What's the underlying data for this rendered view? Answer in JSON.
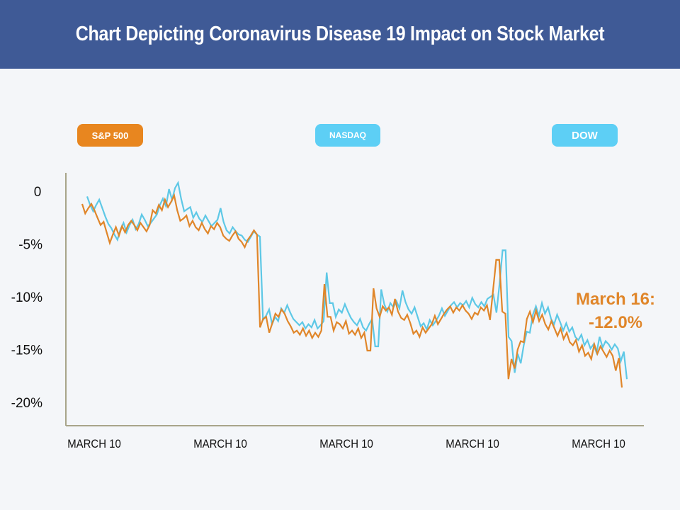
{
  "header": {
    "title": "Chart Depicting Coronavirus Disease 19 Impact on Stock Market"
  },
  "legend": [
    {
      "label": "S&P 500",
      "color": "#e8861f"
    },
    {
      "label": "NASDAQ",
      "color": "#5dcff5"
    },
    {
      "label": "DOW",
      "color": "#5dcff5"
    }
  ],
  "chart_data": {
    "type": "line",
    "title": "Chart Depicting Coronavirus Disease 19 Impact on Stock Market",
    "xlabel": "",
    "ylabel": "",
    "ylim": [
      -22,
      1.5
    ],
    "y_ticks": [
      0,
      -5,
      -10,
      -15,
      -20
    ],
    "y_tick_labels": [
      "0",
      "-5%",
      "-10%",
      "-15%",
      "-20%"
    ],
    "x_tick_labels": [
      "MARCH 10",
      "MARCH 10",
      "MARCH 10",
      "MARCH 10",
      "MARCH 10"
    ],
    "grid": false,
    "legend_position": "top",
    "annotation": {
      "line1": "March 16:",
      "line2": "-12.0%"
    },
    "series": [
      {
        "name": "S&P 500",
        "color": "#e0862a",
        "values": [
          -1.2,
          -2.1,
          -1.6,
          -1.2,
          -1.8,
          -2.5,
          -3.2,
          -2.9,
          -3.9,
          -4.9,
          -4.1,
          -3.4,
          -4.2,
          -3.3,
          -3.9,
          -3.2,
          -2.8,
          -3.2,
          -3.7,
          -3.0,
          -3.4,
          -3.8,
          -3.2,
          -1.8,
          -2.1,
          -1.3,
          -1.8,
          -0.8,
          -1.5,
          -1.0,
          -0.4,
          -1.8,
          -2.8,
          -2.6,
          -2.3,
          -3.3,
          -2.8,
          -3.4,
          -3.7,
          -3.0,
          -3.6,
          -4.0,
          -3.3,
          -3.6,
          -3.0,
          -3.4,
          -4.2,
          -4.5,
          -4.7,
          -4.2,
          -3.8,
          -4.5,
          -4.8,
          -5.3,
          -4.6,
          -4.2,
          -3.7,
          -4.1,
          -12.9,
          -12.1,
          -11.9,
          -13.4,
          -12.5,
          -11.6,
          -11.9,
          -11.2,
          -11.6,
          -12.3,
          -12.8,
          -13.4,
          -13.2,
          -13.6,
          -13.0,
          -13.7,
          -13.2,
          -13.9,
          -13.4,
          -13.8,
          -13.2,
          -8.8,
          -11.9,
          -11.9,
          -13.2,
          -12.4,
          -12.6,
          -13.0,
          -12.3,
          -13.5,
          -13.2,
          -13.6,
          -13.0,
          -13.9,
          -13.4,
          -15.1,
          -15.1,
          -9.2,
          -11.1,
          -11.9,
          -10.9,
          -11.3,
          -11.0,
          -11.7,
          -10.2,
          -11.4,
          -12.0,
          -12.2,
          -11.7,
          -12.5,
          -13.5,
          -13.2,
          -13.8,
          -12.9,
          -13.4,
          -13.0,
          -12.6,
          -11.8,
          -12.6,
          -12.1,
          -11.6,
          -11.2,
          -10.9,
          -11.5,
          -11.0,
          -11.3,
          -10.8,
          -11.3,
          -11.6,
          -12.1,
          -11.5,
          -11.7,
          -11.0,
          -11.3,
          -10.8,
          -12.2,
          -9.3,
          -6.5,
          -6.5,
          -11.4,
          -11.6,
          -17.8,
          -15.9,
          -16.8,
          -15.0,
          -14.2,
          -14.3,
          -12.1,
          -11.4,
          -12.4,
          -11.3,
          -12.3,
          -11.7,
          -12.6,
          -13.1,
          -12.3,
          -13.0,
          -13.7,
          -13.0,
          -14.0,
          -13.4,
          -14.3,
          -14.6,
          -14.1,
          -15.2,
          -14.6,
          -15.6,
          -15.3,
          -15.9,
          -14.5,
          -15.4,
          -14.7,
          -15.2,
          -15.7,
          -15.1,
          -15.6,
          -17.0,
          -15.8,
          -18.6
        ]
      },
      {
        "name": "NASDAQ / DOW",
        "color": "#5ec8e6",
        "values": [
          -0.5,
          -1.3,
          -1.9,
          -1.3,
          -0.8,
          -1.6,
          -2.4,
          -3.1,
          -3.5,
          -4.1,
          -4.6,
          -3.6,
          -3.0,
          -3.9,
          -3.2,
          -2.7,
          -3.6,
          -3.1,
          -2.2,
          -2.7,
          -3.3,
          -3.0,
          -2.6,
          -2.2,
          -1.3,
          -0.7,
          -1.4,
          0.2,
          -0.8,
          0.3,
          0.8,
          -0.7,
          -1.9,
          -1.7,
          -1.5,
          -2.5,
          -2.0,
          -2.6,
          -2.9,
          -2.3,
          -2.8,
          -3.3,
          -3.0,
          -2.7,
          -1.6,
          -2.9,
          -3.7,
          -4.0,
          -3.4,
          -3.8,
          -4.1,
          -4.2,
          -4.6,
          -4.8,
          -4.3,
          -3.8,
          -4.1,
          -4.3,
          -12.2,
          -11.8,
          -11.2,
          -12.6,
          -11.9,
          -12.3,
          -11.1,
          -11.5,
          -10.8,
          -11.5,
          -12.1,
          -12.4,
          -12.7,
          -12.4,
          -13.0,
          -12.6,
          -12.9,
          -12.2,
          -13.0,
          -12.7,
          -12.3,
          -7.7,
          -10.6,
          -10.6,
          -11.9,
          -11.2,
          -11.5,
          -10.7,
          -11.4,
          -12.0,
          -12.4,
          -12.7,
          -12.1,
          -12.9,
          -13.2,
          -12.6,
          -12.1,
          -14.7,
          -14.7,
          -9.3,
          -10.7,
          -11.4,
          -10.6,
          -11.0,
          -10.4,
          -11.1,
          -9.4,
          -10.5,
          -11.2,
          -11.6,
          -11.0,
          -11.9,
          -12.8,
          -12.5,
          -13.1,
          -12.2,
          -12.7,
          -12.3,
          -11.8,
          -11.1,
          -11.8,
          -11.3,
          -10.8,
          -10.5,
          -11.0,
          -10.6,
          -10.8,
          -10.4,
          -11.0,
          -10.1,
          -10.7,
          -11.0,
          -10.5,
          -10.9,
          -10.2,
          -10.0,
          -9.8,
          -11.5,
          -8.8,
          -5.6,
          -5.6,
          -13.8,
          -14.2,
          -17.2,
          -15.4,
          -16.3,
          -14.6,
          -13.3,
          -13.4,
          -11.7,
          -10.9,
          -11.8,
          -10.6,
          -11.6,
          -11.0,
          -12.1,
          -12.6,
          -11.7,
          -12.4,
          -13.2,
          -12.5,
          -13.3,
          -12.9,
          -13.8,
          -14.1,
          -13.6,
          -14.6,
          -14.1,
          -14.9,
          -14.5,
          -15.3,
          -13.8,
          -14.8,
          -14.2,
          -14.5,
          -15.0,
          -14.5,
          -14.9,
          -16.1,
          -15.2,
          -17.8
        ]
      }
    ]
  }
}
